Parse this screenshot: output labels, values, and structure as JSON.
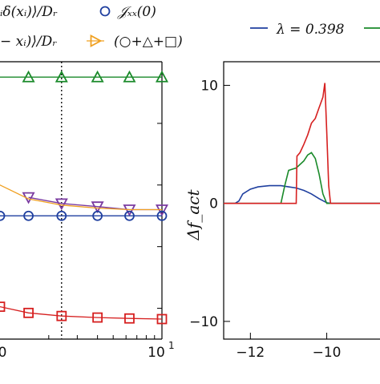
{
  "chart_data": [
    {
      "type": "line",
      "panel": "left",
      "xscale": "log",
      "xlim_visible": [
        1,
        10
      ],
      "x_tick_labels": [
        "0",
        "10",
        "1"
      ],
      "vline_x": 2.4,
      "legend": {
        "entries": [
          {
            "key": "i1",
            "label": "ᵢδ(xᵢ)⟩/Dᵣ",
            "color": "#1f3f9f",
            "marker": "none"
          },
          {
            "key": "i2",
            "label": "− xᵢ)⟩/Dᵣ",
            "color": "#f0a020",
            "marker": "triangle-right"
          },
          {
            "key": "jxx",
            "label": "𝒥ₓₓ(0)",
            "color": "#1f3f9f",
            "marker": "circle"
          },
          {
            "key": "sum",
            "label": "(○+△+□)",
            "color": "#f0a020",
            "marker": "triangle-right"
          }
        ],
        "placement": "top"
      },
      "series": [
        {
          "key": "green",
          "color": "#1a8a2a",
          "marker": "triangle-up",
          "x": [
            0.85,
            1.5,
            2.4,
            4.0,
            6.3,
            10
          ],
          "y": [
            0.95,
            0.95,
            0.95,
            0.95,
            0.95,
            0.95
          ]
        },
        {
          "key": "purple",
          "color": "#7a3aa0",
          "marker": "triangle-down",
          "x": [
            1.5,
            2.4,
            4.0,
            6.3,
            10
          ],
          "y": [
            0.56,
            0.54,
            0.53,
            0.52,
            0.52
          ]
        },
        {
          "key": "orange",
          "color": "#f0a020",
          "marker": "none",
          "x": [
            0.85,
            1.0,
            1.5,
            2.4,
            4.0,
            6.3,
            10
          ],
          "y": [
            0.62,
            0.6,
            0.555,
            0.535,
            0.525,
            0.52,
            0.52
          ]
        },
        {
          "key": "blue",
          "color": "#1f3f9f",
          "marker": "circle",
          "x": [
            0.85,
            1.0,
            1.5,
            2.4,
            4.0,
            6.3,
            10
          ],
          "y": [
            0.5,
            0.5,
            0.5,
            0.5,
            0.5,
            0.5,
            0.5
          ]
        },
        {
          "key": "red",
          "color": "#d62020",
          "marker": "square",
          "x": [
            0.85,
            1.0,
            1.5,
            2.4,
            4.0,
            6.3,
            10
          ],
          "y": [
            0.22,
            0.205,
            0.185,
            0.175,
            0.17,
            0.167,
            0.165
          ]
        }
      ],
      "ylim": [
        0.1,
        1.0
      ]
    },
    {
      "type": "line",
      "panel": "right",
      "ylabel": "Δf_act",
      "xlim": [
        -12.7,
        -8.5
      ],
      "ylim": [
        -11.5,
        12
      ],
      "x_ticks": [
        -12,
        -10
      ],
      "x_tick_labels": [
        "−12",
        "−10"
      ],
      "y_ticks": [
        10,
        0,
        -10
      ],
      "y_tick_labels": [
        "10",
        "0",
        "−10"
      ],
      "legend": {
        "entries": [
          {
            "label": "λ = 0.398",
            "color": "#1f3f9f"
          },
          {
            "label": "",
            "color": "#1a8a2a"
          }
        ],
        "placement": "top"
      },
      "series": [
        {
          "name": "λ = 0.398",
          "color": "#1f3f9f",
          "x": [
            -12.7,
            -12.4,
            -12.3,
            -12.2,
            -12.0,
            -11.8,
            -11.5,
            -11.2,
            -11.0,
            -10.8,
            -10.6,
            -10.4,
            -10.2,
            -10.0,
            -9.9,
            -8.5
          ],
          "y": [
            0,
            0,
            0.2,
            0.8,
            1.2,
            1.4,
            1.5,
            1.5,
            1.4,
            1.3,
            1.1,
            0.8,
            0.4,
            0.05,
            0,
            0
          ]
        },
        {
          "name": "",
          "color": "#1a8a2a",
          "x": [
            -12.7,
            -11.2,
            -11.1,
            -11.0,
            -10.8,
            -10.6,
            -10.5,
            -10.4,
            -10.3,
            -10.2,
            -10.1,
            -10.0,
            -8.5
          ],
          "y": [
            0,
            0,
            1.5,
            2.8,
            3.0,
            3.6,
            4.1,
            4.3,
            3.8,
            2.5,
            0.8,
            0,
            0
          ]
        },
        {
          "name": "",
          "color": "#d62020",
          "x": [
            -12.7,
            -10.8,
            -10.78,
            -10.7,
            -10.6,
            -10.5,
            -10.4,
            -10.3,
            -10.2,
            -10.1,
            -10.05,
            -10.0,
            -9.95,
            -9.9,
            -8.5
          ],
          "y": [
            0,
            0,
            4.0,
            4.3,
            5.0,
            5.8,
            6.8,
            7.2,
            8.1,
            9.0,
            10.2,
            6.0,
            1.5,
            0,
            0
          ]
        }
      ]
    }
  ]
}
